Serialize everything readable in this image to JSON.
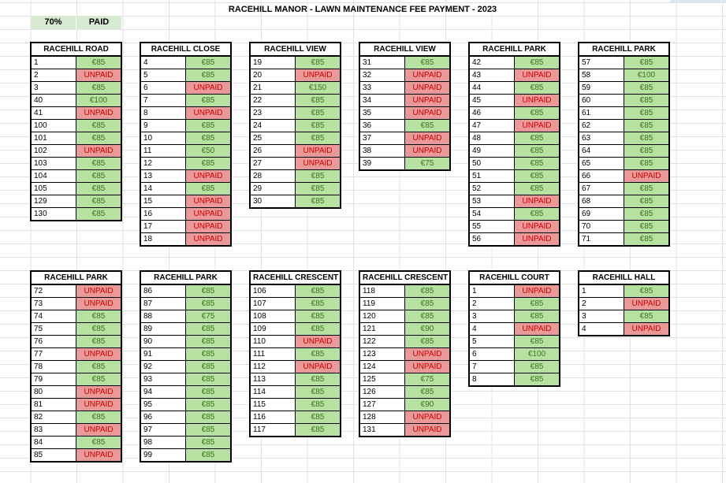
{
  "title": "RACEHILL MANOR - LAWN MAINTENANCE FEE PAYMENT - 2023",
  "summary": {
    "percent": "70%",
    "label": "PAID"
  },
  "colors": {
    "paid_bg": "#b7e1a1",
    "paid_text": "#38761d",
    "unpaid_bg": "#ea9999",
    "unpaid_text": "#cc0000"
  },
  "blocks": [
    {
      "name": "RACEHILL ROAD",
      "rows": [
        [
          "1",
          "€85"
        ],
        [
          "2",
          "UNPAID"
        ],
        [
          "3",
          "€85"
        ],
        [
          "40",
          "€100"
        ],
        [
          "41",
          "UNPAID"
        ],
        [
          "100",
          "€85"
        ],
        [
          "101",
          "€85"
        ],
        [
          "102",
          "UNPAID"
        ],
        [
          "103",
          "€85"
        ],
        [
          "104",
          "€85"
        ],
        [
          "105",
          "€85"
        ],
        [
          "129",
          "€85"
        ],
        [
          "130",
          "€85"
        ]
      ]
    },
    {
      "name": "RACEHILL CLOSE",
      "rows": [
        [
          "4",
          "€85"
        ],
        [
          "5",
          "€85"
        ],
        [
          "6",
          "UNPAID"
        ],
        [
          "7",
          "€85"
        ],
        [
          "8",
          "UNPAID"
        ],
        [
          "9",
          "€85"
        ],
        [
          "10",
          "€85"
        ],
        [
          "11",
          "€50"
        ],
        [
          "12",
          "€85"
        ],
        [
          "13",
          "UNPAID"
        ],
        [
          "14",
          "€85"
        ],
        [
          "15",
          "UNPAID"
        ],
        [
          "16",
          "UNPAID"
        ],
        [
          "17",
          "UNPAID"
        ],
        [
          "18",
          "UNPAID"
        ]
      ]
    },
    {
      "name": "RACEHILL VIEW",
      "rows": [
        [
          "19",
          "€85"
        ],
        [
          "20",
          "UNPAID"
        ],
        [
          "21",
          "€150"
        ],
        [
          "22",
          "€85"
        ],
        [
          "23",
          "€85"
        ],
        [
          "24",
          "€85"
        ],
        [
          "25",
          "€85"
        ],
        [
          "26",
          "UNPAID"
        ],
        [
          "27",
          "UNPAID"
        ],
        [
          "28",
          "€85"
        ],
        [
          "29",
          "€85"
        ],
        [
          "30",
          "€85"
        ]
      ]
    },
    {
      "name": "RACEHILL VIEW",
      "rows": [
        [
          "31",
          "€85"
        ],
        [
          "32",
          "UNPAID"
        ],
        [
          "33",
          "UNPAID"
        ],
        [
          "34",
          "UNPAID"
        ],
        [
          "35",
          "UNPAID"
        ],
        [
          "36",
          "€85"
        ],
        [
          "37",
          "UNPAID"
        ],
        [
          "38",
          "UNPAID"
        ],
        [
          "39",
          "€75"
        ]
      ]
    },
    {
      "name": "RACEHILL PARK",
      "rows": [
        [
          "42",
          "€85"
        ],
        [
          "43",
          "UNPAID"
        ],
        [
          "44",
          "€85"
        ],
        [
          "45",
          "UNPAID"
        ],
        [
          "46",
          "€85"
        ],
        [
          "47",
          "UNPAID"
        ],
        [
          "48",
          "€85"
        ],
        [
          "49",
          "€85"
        ],
        [
          "50",
          "€85"
        ],
        [
          "51",
          "€85"
        ],
        [
          "52",
          "€85"
        ],
        [
          "53",
          "UNPAID"
        ],
        [
          "54",
          "€85"
        ],
        [
          "55",
          "UNPAID"
        ],
        [
          "56",
          "UNPAID"
        ]
      ]
    },
    {
      "name": "RACEHILL PARK",
      "rows": [
        [
          "57",
          "€85"
        ],
        [
          "58",
          "€100"
        ],
        [
          "59",
          "€85"
        ],
        [
          "60",
          "€85"
        ],
        [
          "61",
          "€85"
        ],
        [
          "62",
          "€85"
        ],
        [
          "63",
          "€85"
        ],
        [
          "64",
          "€85"
        ],
        [
          "65",
          "€85"
        ],
        [
          "66",
          "UNPAID"
        ],
        [
          "67",
          "€85"
        ],
        [
          "68",
          "€85"
        ],
        [
          "69",
          "€85"
        ],
        [
          "70",
          "€85"
        ],
        [
          "71",
          "€85"
        ]
      ]
    },
    {
      "name": "RACEHILL PARK",
      "rows": [
        [
          "72",
          "UNPAID"
        ],
        [
          "73",
          "UNPAID"
        ],
        [
          "74",
          "€85"
        ],
        [
          "75",
          "€85"
        ],
        [
          "76",
          "€85"
        ],
        [
          "77",
          "UNPAID"
        ],
        [
          "78",
          "€85"
        ],
        [
          "79",
          "€85"
        ],
        [
          "80",
          "UNPAID"
        ],
        [
          "81",
          "UNPAID"
        ],
        [
          "82",
          "€85"
        ],
        [
          "83",
          "UNPAID"
        ],
        [
          "84",
          "€85"
        ],
        [
          "85",
          "UNPAID"
        ]
      ]
    },
    {
      "name": "RACEHILL PARK",
      "rows": [
        [
          "86",
          "€85"
        ],
        [
          "87",
          "€85"
        ],
        [
          "88",
          "€75"
        ],
        [
          "89",
          "€85"
        ],
        [
          "90",
          "€85"
        ],
        [
          "91",
          "€85"
        ],
        [
          "92",
          "€85"
        ],
        [
          "93",
          "€85"
        ],
        [
          "94",
          "€85"
        ],
        [
          "95",
          "€85"
        ],
        [
          "96",
          "€85"
        ],
        [
          "97",
          "€85"
        ],
        [
          "98",
          "€85"
        ],
        [
          "99",
          "€85"
        ]
      ]
    },
    {
      "name": "RACEHILL CRESCENT",
      "rows": [
        [
          "106",
          "€85"
        ],
        [
          "107",
          "€85"
        ],
        [
          "108",
          "€85"
        ],
        [
          "109",
          "€85"
        ],
        [
          "110",
          "UNPAID"
        ],
        [
          "111",
          "€85"
        ],
        [
          "112",
          "UNPAID"
        ],
        [
          "113",
          "€85"
        ],
        [
          "114",
          "€85"
        ],
        [
          "115",
          "€85"
        ],
        [
          "116",
          "€85"
        ],
        [
          "117",
          "€85"
        ]
      ]
    },
    {
      "name": "RACEHILL CRESCENT",
      "rows": [
        [
          "118",
          "€85"
        ],
        [
          "119",
          "€85"
        ],
        [
          "120",
          "€85"
        ],
        [
          "121",
          "€90"
        ],
        [
          "122",
          "€85"
        ],
        [
          "123",
          "UNPAID"
        ],
        [
          "124",
          "UNPAID"
        ],
        [
          "125",
          "€75"
        ],
        [
          "126",
          "€85"
        ],
        [
          "127",
          "€90"
        ],
        [
          "128",
          "UNPAID"
        ],
        [
          "131",
          "UNPAID"
        ]
      ]
    },
    {
      "name": "RACEHILL COURT",
      "rows": [
        [
          "1",
          "UNPAID"
        ],
        [
          "2",
          "€85"
        ],
        [
          "3",
          "€85"
        ],
        [
          "4",
          "UNPAID"
        ],
        [
          "5",
          "€85"
        ],
        [
          "6",
          "€100"
        ],
        [
          "7",
          "€85"
        ],
        [
          "8",
          "€85"
        ]
      ]
    },
    {
      "name": "RACEHILL HALL",
      "rows": [
        [
          "1",
          "€85"
        ],
        [
          "2",
          "UNPAID"
        ],
        [
          "3",
          "€85"
        ],
        [
          "4",
          "UNPAID"
        ]
      ]
    }
  ]
}
